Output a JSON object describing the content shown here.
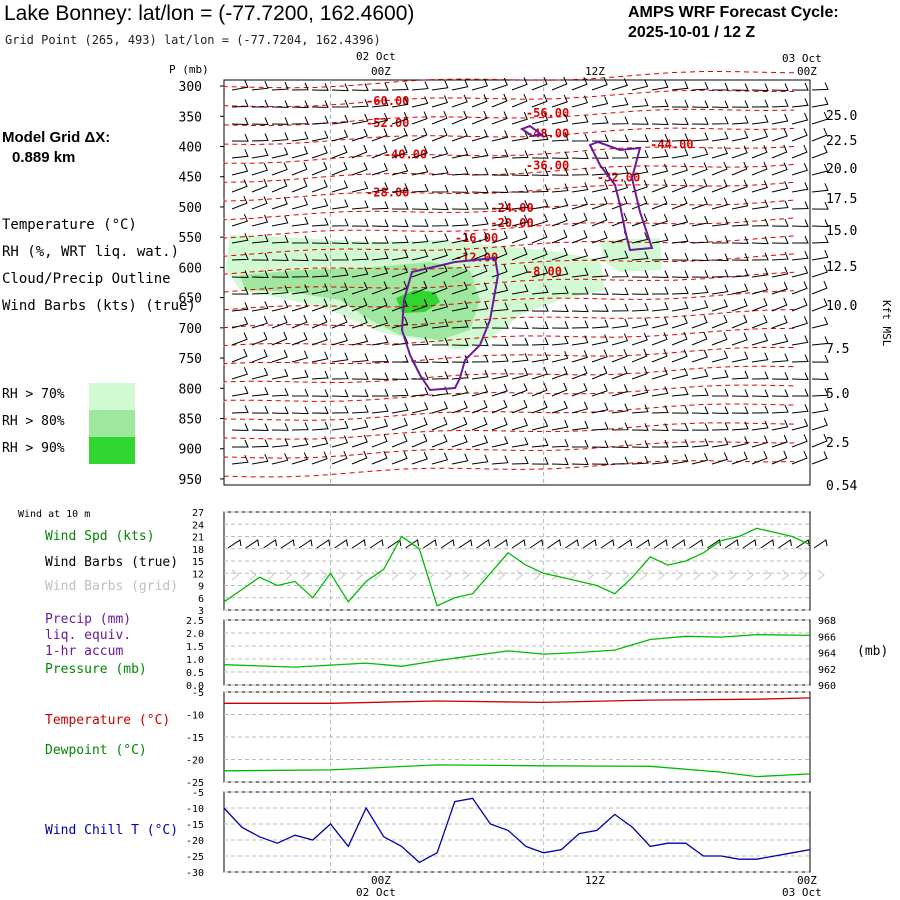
{
  "header": {
    "title": "Lake Bonney:  lat/lon = (-77.7200, 162.4600)",
    "subtitle": "Grid Point (265, 493) lat/lon = (-77.7204, 162.4396)",
    "cycle_line1": "AMPS WRF Forecast Cycle:",
    "cycle_line2": "2025-10-01 / 12  Z"
  },
  "model_grid": {
    "line1": "Model Grid ΔX:",
    "line2": "0.889 km"
  },
  "legends": {
    "temperature": "Temperature (°C)",
    "rh": "RH (%, WRT liq. wat.)",
    "cloud": "Cloud/Precip Outline",
    "wind_barbs": "Wind Barbs (kts) (true)",
    "rh70": "RH > 70%",
    "rh80": "RH > 80%",
    "rh90": "RH > 90%"
  },
  "time_axis": {
    "top_date_left": "02 Oct",
    "top_date_right": "03 Oct",
    "ticks": [
      "00Z",
      "12Z",
      "00Z"
    ],
    "bottom_date_left": "02 Oct",
    "bottom_date_right": "03 Oct"
  },
  "colors": {
    "temperature": "#dd0000",
    "cloud_outline": "#6a1b9a",
    "rh70": "#d2fad2",
    "rh80": "#9fe79f",
    "rh90": "#2fd62f",
    "wind_speed": "#00bb00",
    "pressure": "#00bb00",
    "dewpoint": "#00bb00",
    "sfc_temperature": "#cc0000",
    "wind_chill": "#0000aa",
    "grid_barbs": "#c8c8c8",
    "legend_precip": "#6a1b9a",
    "legend_green": "#008800"
  },
  "chart_data": [
    {
      "type": "line",
      "name": "cross-section",
      "ylabel": "P (mb)",
      "y2label": "Kft MSL",
      "y_ticks": [
        "300",
        "350",
        "400",
        "450",
        "500",
        "550",
        "600",
        "650",
        "700",
        "750",
        "800",
        "850",
        "900",
        "950"
      ],
      "y2_ticks": [
        "25.0",
        "22.5",
        "20.0",
        "17.5",
        "15.0",
        "12.5",
        "10.0",
        "7.5",
        "5.0",
        "2.5",
        "0.54"
      ],
      "temperature_labels": [
        {
          "label": "-60.00",
          "hour": 8,
          "p": 298
        },
        {
          "label": "-56.00",
          "hour": 17,
          "p": 318
        },
        {
          "label": "-52.00",
          "hour": 8,
          "p": 335
        },
        {
          "label": "-48.00",
          "hour": 17,
          "p": 352
        },
        {
          "label": "-44.00",
          "hour": 24,
          "p": 370
        },
        {
          "label": "-40.00",
          "hour": 9,
          "p": 387
        },
        {
          "label": "-36.00",
          "hour": 17,
          "p": 405
        },
        {
          "label": "-32.00",
          "hour": 21,
          "p": 425
        },
        {
          "label": "-28.00",
          "hour": 8,
          "p": 450
        },
        {
          "label": "-24.00",
          "hour": 15,
          "p": 475
        },
        {
          "label": "-20.00",
          "hour": 15,
          "p": 500
        },
        {
          "label": "-16.00",
          "hour": 13,
          "p": 525
        },
        {
          "label": "-12.00",
          "hour": 13,
          "p": 557
        },
        {
          "label": "-8.00",
          "hour": 17,
          "p": 580
        }
      ]
    },
    {
      "type": "line",
      "title": "Wind at 10 m",
      "series": [
        {
          "name": "Wind Spd (kts)",
          "x": [
            0,
            1,
            2,
            3,
            4,
            5,
            6,
            7,
            8,
            9,
            10,
            11,
            12,
            13,
            14,
            15,
            16,
            17,
            18,
            19,
            20,
            21,
            22,
            23,
            24,
            25,
            26,
            27,
            28,
            29,
            30,
            31,
            32,
            33
          ],
          "values": [
            5,
            8,
            11,
            9,
            10,
            6,
            12,
            5,
            10,
            13,
            21,
            18,
            4,
            6,
            7,
            12,
            17,
            14,
            12,
            11,
            10,
            9,
            7,
            11,
            16,
            14,
            15,
            17,
            20,
            21,
            23,
            22,
            21,
            19
          ]
        }
      ],
      "y_ticks": [
        "27",
        "24",
        "21",
        "18",
        "15",
        "12",
        "9",
        "6",
        "3"
      ],
      "ylim": [
        3,
        27
      ],
      "legend": [
        "Wind Spd (kts)",
        "Wind Barbs (true)",
        "Wind Barbs (grid)"
      ]
    },
    {
      "type": "line",
      "series": [
        {
          "name": "Pressure (mb)",
          "x": [
            0,
            4,
            8,
            10,
            12,
            14,
            16,
            18,
            20,
            22,
            24,
            26,
            28,
            30,
            33
          ],
          "values": [
            962.5,
            962.2,
            962.7,
            962.3,
            963.0,
            963.6,
            964.2,
            963.8,
            964.0,
            964.3,
            965.6,
            966.0,
            965.9,
            966.2,
            966.1
          ]
        },
        {
          "name": "Precip (mm)",
          "x": [
            0,
            33
          ],
          "values": [
            0,
            0
          ]
        }
      ],
      "legend": [
        "Precip (mm)",
        "liq. equiv.",
        "1-hr accum",
        "Pressure (mb)"
      ],
      "y_ticks": [
        "2.5",
        "2.0",
        "1.5",
        "1.0",
        "0.5",
        "0.0"
      ],
      "y2_ticks": [
        "968",
        "966",
        "964",
        "962",
        "960"
      ],
      "y2label": "(mb)",
      "ylim": [
        0,
        2.5
      ],
      "y2lim": [
        960,
        968
      ]
    },
    {
      "type": "line",
      "series": [
        {
          "name": "Temperature (°C)",
          "x": [
            0,
            6,
            12,
            18,
            24,
            30,
            33
          ],
          "values": [
            -7.5,
            -7.5,
            -7.0,
            -7.3,
            -6.8,
            -6.6,
            -6.3
          ]
        },
        {
          "name": "Dewpoint (°C)",
          "x": [
            0,
            6,
            12,
            18,
            24,
            28,
            30,
            33
          ],
          "values": [
            -22.5,
            -22.3,
            -21.2,
            -21.4,
            -21.5,
            -22.8,
            -23.8,
            -23.2
          ]
        }
      ],
      "y_ticks": [
        "-5",
        "-10",
        "-15",
        "-20",
        "-25"
      ],
      "ylim": [
        -25,
        -5
      ]
    },
    {
      "type": "line",
      "series": [
        {
          "name": "Wind Chill T (°C)",
          "x": [
            0,
            1,
            2,
            3,
            4,
            5,
            6,
            7,
            8,
            9,
            10,
            11,
            12,
            13,
            14,
            15,
            16,
            17,
            18,
            19,
            20,
            21,
            22,
            23,
            24,
            25,
            26,
            27,
            28,
            29,
            30,
            31,
            32,
            33
          ],
          "values": [
            -10,
            -16,
            -19,
            -21,
            -18.5,
            -20,
            -15,
            -22,
            -10,
            -19,
            -22,
            -27,
            -24,
            -8,
            -7,
            -15,
            -17,
            -22,
            -24,
            -23,
            -18,
            -17,
            -12,
            -16,
            -22,
            -21,
            -21,
            -25,
            -25,
            -26,
            -26,
            -25,
            -24,
            -23
          ]
        }
      ],
      "y_ticks": [
        "-5",
        "-10",
        "-15",
        "-20",
        "-25",
        "-30"
      ],
      "ylim": [
        -30,
        -5
      ]
    }
  ],
  "panels": {
    "wind_label": "Wind at 10 m",
    "wind_spd": "Wind Spd (kts)",
    "barbs_true": "Wind Barbs (true)",
    "barbs_grid": "Wind Barbs (grid)",
    "precip1": "Precip (mm)",
    "precip2": "liq. equiv.",
    "precip3": "1-hr accum",
    "pressure": "Pressure (mb)",
    "mb_unit": "(mb)",
    "temperature": "Temperature (°C)",
    "dewpoint": "Dewpoint (°C)",
    "wind_chill": "Wind Chill T (°C)"
  }
}
